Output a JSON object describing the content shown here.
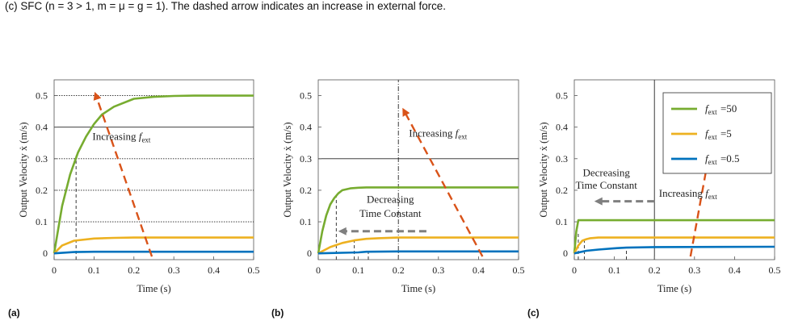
{
  "caption": "(c) SFC (n = 3 > 1, m = μ = g = 1). The dashed arrow indicates an increase in external force.",
  "colors": {
    "green": "#77ac30",
    "yellow": "#edb120",
    "blue": "#0072bd",
    "arrow_red": "#d95319",
    "arrow_gray": "#7f7f7f"
  },
  "legend": {
    "entries": [
      "f_ext =50",
      "f_ext =5",
      "f_ext =0.5"
    ],
    "placement": "top-right of panel (c)"
  },
  "chart_data": [
    {
      "type": "line",
      "panel_label": "(a)",
      "xlabel": "Time (s)",
      "ylabel": "Output Velocity  ẋ (m/s)",
      "xlim": [
        0,
        0.5
      ],
      "ylim": [
        -0.02,
        0.55
      ],
      "xticks": [
        "0",
        "0.1",
        "0.2",
        "0.3",
        "0.4",
        "0.5"
      ],
      "yticks": [
        "0",
        "0.1",
        "0.2",
        "0.3",
        "0.4",
        "0.5"
      ],
      "series": [
        {
          "color": "green",
          "x": [
            0,
            0.02,
            0.04,
            0.06,
            0.08,
            0.1,
            0.12,
            0.15,
            0.2,
            0.25,
            0.3,
            0.35,
            0.5
          ],
          "y": [
            0,
            0.15,
            0.25,
            0.32,
            0.37,
            0.41,
            0.44,
            0.465,
            0.49,
            0.496,
            0.499,
            0.5,
            0.5
          ]
        },
        {
          "color": "yellow",
          "x": [
            0,
            0.02,
            0.05,
            0.1,
            0.15,
            0.2,
            0.3,
            0.5
          ],
          "y": [
            0,
            0.025,
            0.04,
            0.047,
            0.049,
            0.05,
            0.05,
            0.05
          ]
        },
        {
          "color": "blue",
          "x": [
            0,
            0.05,
            0.1,
            0.2,
            0.5
          ],
          "y": [
            0,
            0.004,
            0.005,
            0.005,
            0.005
          ]
        }
      ],
      "annotations": [
        {
          "text": "Increasing f_ext",
          "x": 0.17,
          "y": 0.36
        }
      ],
      "arrows": [
        {
          "color": "arrow_red",
          "x1": 0.245,
          "y1": -0.01,
          "x2": 0.105,
          "y2": 0.5
        }
      ],
      "vlines": [
        {
          "x": 0.055,
          "y1": -0.02,
          "y2": 0.31
        }
      ],
      "hgrid": [
        0.1,
        0.2,
        0.3,
        0.4,
        0.5
      ]
    },
    {
      "type": "line",
      "panel_label": "(b)",
      "xlabel": "Time (s)",
      "ylabel": "Output Velocity  ẋ (m/s)",
      "xlim": [
        0,
        0.5
      ],
      "ylim": [
        -0.02,
        0.55
      ],
      "xticks": [
        "0",
        "0.1",
        "0.2",
        "0.3",
        "0.4",
        "0.5"
      ],
      "yticks": [
        "0",
        "0.1",
        "0.2",
        "0.3",
        "0.4",
        "0.5"
      ],
      "series": [
        {
          "color": "green",
          "x": [
            0,
            0.01,
            0.02,
            0.03,
            0.04,
            0.05,
            0.06,
            0.08,
            0.1,
            0.12,
            0.5
          ],
          "y": [
            0,
            0.07,
            0.12,
            0.155,
            0.175,
            0.19,
            0.2,
            0.206,
            0.208,
            0.209,
            0.209
          ]
        },
        {
          "color": "yellow",
          "x": [
            0,
            0.03,
            0.06,
            0.09,
            0.12,
            0.15,
            0.2,
            0.5
          ],
          "y": [
            0,
            0.02,
            0.033,
            0.041,
            0.046,
            0.048,
            0.05,
            0.05
          ]
        },
        {
          "color": "blue",
          "x": [
            0,
            0.1,
            0.12,
            0.2,
            0.5
          ],
          "y": [
            0,
            0.003,
            0.005,
            0.006,
            0.006
          ]
        }
      ],
      "annotations": [
        {
          "text": "Increasing f_ext",
          "x": 0.3,
          "y": 0.37
        },
        {
          "text": "Decreasing",
          "x": 0.18,
          "y": 0.16
        },
        {
          "text": "Time Constant",
          "x": 0.18,
          "y": 0.115
        }
      ],
      "arrows": [
        {
          "color": "arrow_red",
          "x1": 0.41,
          "y1": -0.01,
          "x2": 0.215,
          "y2": 0.45
        },
        {
          "color": "arrow_gray",
          "x1": 0.27,
          "y1": 0.07,
          "x2": 0.06,
          "y2": 0.07
        }
      ],
      "vlines": [
        {
          "x": 0.045,
          "y1": -0.02,
          "y2": 0.18
        },
        {
          "x": 0.09,
          "y1": -0.02,
          "y2": 0.04
        },
        {
          "x": 0.125,
          "y1": -0.02,
          "y2": 0.005
        },
        {
          "x": 0.2,
          "y1": -0.02,
          "y2": 0.55,
          "dashdot": true
        }
      ],
      "hgrid": [
        0.3
      ]
    },
    {
      "type": "line",
      "panel_label": "(c)",
      "xlabel": "Time (s)",
      "ylabel": "Output Velocity  ẋ (m/s)",
      "xlim": [
        0,
        0.5
      ],
      "ylim": [
        -0.02,
        0.55
      ],
      "xticks": [
        "0",
        "0.1",
        "0.2",
        "0.3",
        "0.4",
        "0.5"
      ],
      "yticks": [
        "0",
        "0.1",
        "0.2",
        "0.3",
        "0.4",
        "0.5"
      ],
      "series": [
        {
          "name": "f_ext =50",
          "color": "green",
          "x": [
            0,
            0.005,
            0.01,
            0.5
          ],
          "y": [
            0,
            0.07,
            0.105,
            0.105
          ]
        },
        {
          "name": "f_ext =5",
          "color": "yellow",
          "x": [
            0,
            0.01,
            0.02,
            0.03,
            0.04,
            0.06,
            0.5
          ],
          "y": [
            0,
            0.025,
            0.04,
            0.045,
            0.048,
            0.05,
            0.05
          ]
        },
        {
          "name": "f_ext =0.5",
          "color": "blue",
          "x": [
            0,
            0.03,
            0.06,
            0.1,
            0.13,
            0.2,
            0.5
          ],
          "y": [
            0,
            0.008,
            0.012,
            0.016,
            0.018,
            0.02,
            0.021
          ]
        }
      ],
      "annotations": [
        {
          "text": "Decreasing",
          "x": 0.08,
          "y": 0.245
        },
        {
          "text": "Time Constant",
          "x": 0.08,
          "y": 0.205
        },
        {
          "text": "Increasing f_ext",
          "x": 0.285,
          "y": 0.18
        }
      ],
      "arrows": [
        {
          "color": "arrow_red",
          "x1": 0.29,
          "y1": -0.01,
          "x2": 0.33,
          "y2": 0.27
        },
        {
          "color": "arrow_gray",
          "x1": 0.2,
          "y1": 0.165,
          "x2": 0.06,
          "y2": 0.165
        }
      ],
      "vlines": [
        {
          "x": 0.01,
          "y1": -0.02,
          "y2": 0.07
        },
        {
          "x": 0.025,
          "y1": -0.02,
          "y2": 0.04
        },
        {
          "x": 0.13,
          "y1": -0.02,
          "y2": 0.015
        },
        {
          "x": 0.2,
          "y1": -0.02,
          "y2": 0.55,
          "solid": true
        }
      ],
      "hgrid": []
    }
  ]
}
